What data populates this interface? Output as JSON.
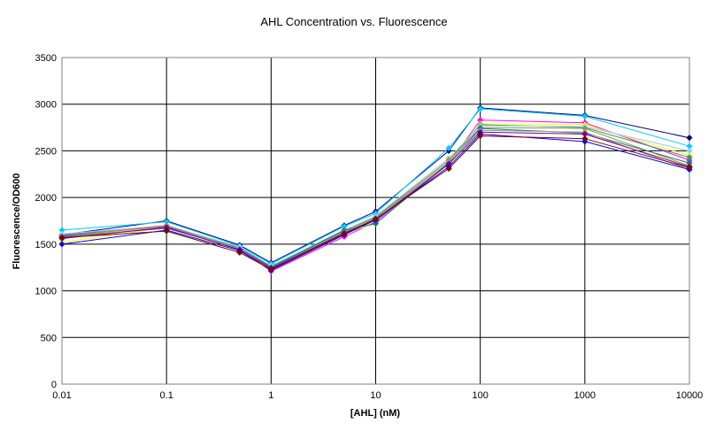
{
  "chart_data": {
    "type": "line",
    "title": "AHL Concentration vs. Fluorescence",
    "xlabel": "[AHL] (nM)",
    "ylabel": "Fluorescence/OD600",
    "x_scale": "log",
    "xlim": [
      0.01,
      10000
    ],
    "ylim": [
      0,
      3500
    ],
    "grid": true,
    "x_ticks": [
      "0.01",
      "0.1",
      "1",
      "10",
      "100",
      "1000",
      "10000"
    ],
    "y_ticks": [
      "0",
      "500",
      "1000",
      "1500",
      "2000",
      "2500",
      "3000",
      "3500"
    ],
    "x": [
      0.01,
      0.1,
      0.5,
      1,
      5,
      10,
      50,
      100,
      1000,
      10000
    ],
    "series": [
      {
        "color": "#000080",
        "values": [
          1600,
          1750,
          1490,
          1300,
          1700,
          1850,
          2500,
          2960,
          2880,
          2640
        ]
      },
      {
        "color": "#00ccff",
        "values": [
          1650,
          1740,
          1480,
          1290,
          1690,
          1830,
          2530,
          2950,
          2870,
          2550
        ]
      },
      {
        "color": "#ff00ff",
        "values": [
          1590,
          1690,
          1460,
          1210,
          1580,
          1740,
          2360,
          2830,
          2800,
          2400
        ]
      },
      {
        "color": "#ffff00",
        "values": [
          1520,
          1680,
          1440,
          1260,
          1620,
          1720,
          2380,
          2790,
          2780,
          2450
        ]
      },
      {
        "color": "#339966",
        "values": [
          1600,
          1700,
          1460,
          1260,
          1640,
          1790,
          2400,
          2780,
          2750,
          2430
        ]
      },
      {
        "color": "#99ccff",
        "values": [
          1610,
          1700,
          1470,
          1270,
          1650,
          1800,
          2420,
          2770,
          2760,
          2500
        ]
      },
      {
        "color": "#999933",
        "values": [
          1580,
          1700,
          1450,
          1250,
          1640,
          1780,
          2400,
          2750,
          2740,
          2340
        ]
      },
      {
        "color": "#008080",
        "values": [
          1580,
          1670,
          1450,
          1250,
          1650,
          1720,
          2370,
          2740,
          2690,
          2370
        ]
      },
      {
        "color": "#999999",
        "values": [
          1570,
          1680,
          1450,
          1240,
          1630,
          1770,
          2380,
          2720,
          2700,
          2300
        ]
      },
      {
        "color": "#800080",
        "values": [
          1560,
          1680,
          1440,
          1240,
          1620,
          1760,
          2360,
          2700,
          2680,
          2330
        ]
      },
      {
        "color": "#0000ff",
        "values": [
          1500,
          1650,
          1430,
          1220,
          1600,
          1760,
          2330,
          2680,
          2600,
          2300
        ]
      },
      {
        "color": "#800000",
        "values": [
          1570,
          1640,
          1410,
          1230,
          1610,
          1770,
          2310,
          2660,
          2630,
          2320
        ]
      }
    ]
  }
}
